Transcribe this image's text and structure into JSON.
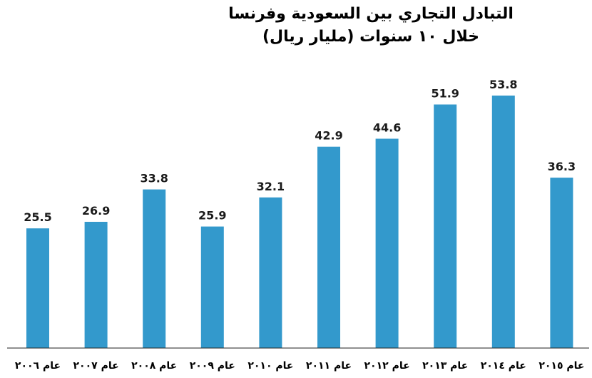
{
  "chart_data": {
    "type": "bar",
    "title": "التبادل التجاري بين السعودية وفرنسا خلال ١٠ سنوات (مليار ريال)",
    "categories": [
      "عام ٢٠٠٦",
      "عام ٢٠٠٧",
      "عام ٢٠٠٨",
      "عام ٢٠٠٩",
      "عام ٢٠١٠",
      "عام ٢٠١١",
      "عام ٢٠١٢",
      "عام ٢٠١٣",
      "عام ٢٠١٤",
      "عام ٢٠١٥"
    ],
    "values": [
      25.5,
      26.9,
      33.8,
      25.9,
      32.1,
      42.9,
      44.6,
      51.9,
      53.8,
      36.3
    ],
    "value_labels": [
      "25.5",
      "26.9",
      "33.8",
      "25.9",
      "32.1",
      "42.9",
      "44.6",
      "51.9",
      "53.8",
      "36.3"
    ],
    "xlabel": "",
    "ylabel": "",
    "ylim": [
      0,
      60
    ],
    "grid": false,
    "legend": "none",
    "bar_color": "#3399cc"
  }
}
